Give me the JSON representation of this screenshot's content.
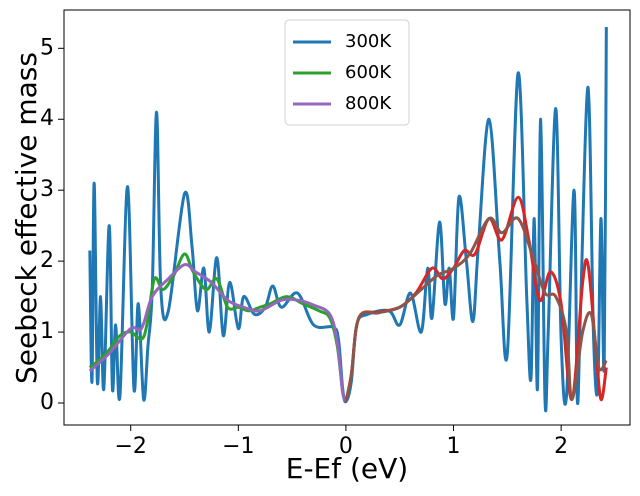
{
  "chart_data": {
    "type": "line",
    "xlabel": "E-Ef (eV)",
    "ylabel": "Seebeck effective mass",
    "xlim": [
      -2.62,
      2.64
    ],
    "ylim": [
      -0.31,
      5.54
    ],
    "xticks": [
      {
        "value": -2,
        "label": "−2"
      },
      {
        "value": -1,
        "label": "−1"
      },
      0,
      1,
      2
    ],
    "yticks": [
      0,
      1,
      2,
      3,
      4,
      5
    ],
    "legend": "upper center",
    "series": [
      {
        "name": "300K",
        "color": "#1f77b4",
        "x": [
          -2.38,
          -2.36,
          -2.34,
          -2.31,
          -2.28,
          -2.25,
          -2.2,
          -2.17,
          -2.14,
          -2.1,
          -2.03,
          -1.97,
          -1.93,
          -1.88,
          -1.84,
          -1.8,
          -1.76,
          -1.72,
          -1.65,
          -1.5,
          -1.43,
          -1.38,
          -1.32,
          -1.27,
          -1.2,
          -1.14,
          -1.08,
          -1.0,
          -0.95,
          -0.85,
          -0.75,
          -0.68,
          -0.6,
          -0.45,
          -0.3,
          -0.12,
          -0.07,
          -0.03,
          0,
          0.05,
          0.1,
          0.2,
          0.4,
          0.5,
          0.6,
          0.7,
          0.76,
          0.8,
          0.87,
          0.92,
          0.96,
          1.0,
          1.05,
          1.12,
          1.18,
          1.23,
          1.33,
          1.43,
          1.5,
          1.6,
          1.68,
          1.72,
          1.75,
          1.78,
          1.81,
          1.85,
          1.88,
          1.95,
          2.0,
          2.05,
          2.12,
          2.15,
          2.18,
          2.25,
          2.3,
          2.34,
          2.37,
          2.4,
          2.42
        ],
        "values": [
          2.15,
          0.3,
          3.1,
          0.3,
          1.5,
          0.2,
          2.5,
          0.2,
          1.1,
          0.1,
          3.05,
          0.2,
          1.4,
          0.05,
          0.8,
          1.6,
          4.1,
          1.6,
          1.3,
          2.95,
          2.2,
          1.3,
          1.9,
          1.0,
          2.05,
          0.95,
          1.7,
          1.05,
          1.5,
          1.25,
          1.35,
          1.65,
          1.35,
          1.55,
          1.1,
          1.07,
          0.9,
          0.2,
          0.02,
          0.3,
          1.1,
          1.25,
          1.3,
          1.1,
          1.55,
          1.0,
          1.9,
          1.2,
          2.55,
          1.4,
          1.9,
          1.2,
          2.9,
          2.0,
          1.15,
          2.2,
          4.0,
          2.0,
          0.7,
          4.65,
          1.5,
          0.35,
          2.6,
          0.2,
          4.0,
          0.05,
          1.0,
          4.15,
          0.9,
          0.1,
          3.0,
          0.05,
          1.3,
          4.45,
          1.0,
          0.2,
          2.6,
          0.5,
          5.3
        ]
      },
      {
        "name": "600K",
        "color": "#2ca02c",
        "x": [
          -2.38,
          -2.3,
          -2.2,
          -2.1,
          -2.0,
          -1.9,
          -1.85,
          -1.78,
          -1.7,
          -1.6,
          -1.5,
          -1.42,
          -1.3,
          -1.2,
          -1.1,
          -1.0,
          -0.9,
          -0.8,
          -0.7,
          -0.55,
          -0.4,
          -0.25,
          -0.15,
          -0.08,
          -0.03,
          0
        ],
        "values": [
          0.5,
          0.6,
          0.75,
          0.95,
          1.0,
          0.9,
          1.1,
          1.75,
          1.6,
          1.8,
          2.1,
          1.85,
          1.6,
          1.75,
          1.35,
          1.35,
          1.3,
          1.35,
          1.4,
          1.5,
          1.4,
          1.3,
          1.2,
          0.8,
          0.15,
          0.02
        ]
      },
      {
        "name": "800K",
        "color": "#9467bd",
        "x": [
          -2.38,
          -2.2,
          -2.0,
          -1.9,
          -1.8,
          -1.65,
          -1.5,
          -1.4,
          -1.25,
          -1.1,
          -0.95,
          -0.8,
          -0.6,
          -0.45,
          -0.3,
          -0.15,
          -0.08,
          -0.03,
          0
        ],
        "values": [
          0.45,
          0.7,
          1.05,
          1.05,
          1.5,
          1.75,
          1.95,
          1.85,
          1.7,
          1.45,
          1.35,
          1.3,
          1.45,
          1.45,
          1.38,
          1.25,
          0.85,
          0.15,
          0.02
        ]
      },
      {
        "color": "#d62728",
        "x": [
          0,
          0.05,
          0.12,
          0.3,
          0.5,
          0.65,
          0.8,
          0.9,
          1.0,
          1.1,
          1.2,
          1.33,
          1.45,
          1.6,
          1.7,
          1.8,
          1.9,
          2.0,
          2.1,
          2.2,
          2.25,
          2.32,
          2.37,
          2.42
        ],
        "values": [
          0.02,
          0.4,
          1.2,
          1.28,
          1.35,
          1.55,
          1.9,
          1.75,
          1.9,
          2.15,
          2.1,
          2.6,
          2.3,
          2.9,
          2.3,
          1.45,
          1.85,
          1.4,
          0.05,
          1.7,
          1.95,
          0.8,
          0.05,
          0.5
        ]
      },
      {
        "color": "#8c564b",
        "x": [
          0,
          0.05,
          0.12,
          0.3,
          0.5,
          0.7,
          0.85,
          1.0,
          1.15,
          1.33,
          1.45,
          1.6,
          1.75,
          1.85,
          1.95,
          2.05,
          2.1,
          2.2,
          2.28,
          2.35,
          2.42
        ],
        "values": [
          0.02,
          0.4,
          1.2,
          1.27,
          1.35,
          1.6,
          1.8,
          1.9,
          2.1,
          2.6,
          2.4,
          2.6,
          2.0,
          1.55,
          1.5,
          1.0,
          0.05,
          1.0,
          1.25,
          0.5,
          0.6
        ]
      }
    ]
  }
}
